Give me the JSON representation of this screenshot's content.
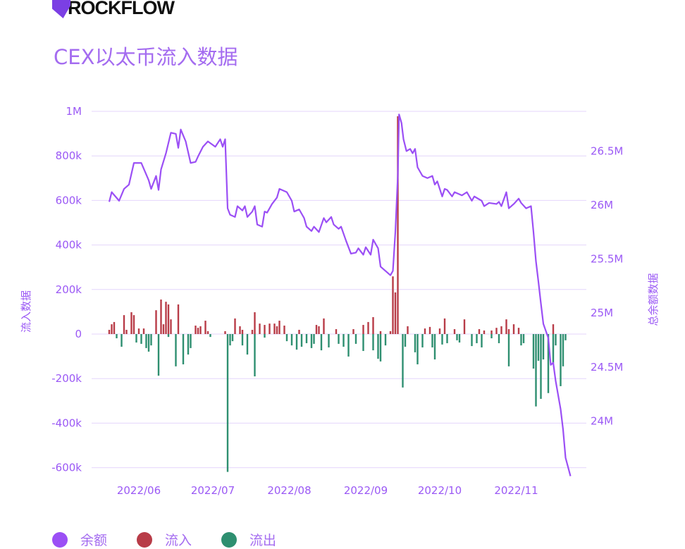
{
  "brand": "ROCKFLOW",
  "title": "CEX以太币流入数据",
  "colors": {
    "balance": "#9b4ff5",
    "inflow": "#b83c48",
    "outflow": "#2e8f70",
    "grid": "#e4d6fb",
    "text": "#9b59f5"
  },
  "legend": [
    {
      "label": "余额",
      "color": "#9b4ff5"
    },
    {
      "label": "流入",
      "color": "#b83c48"
    },
    {
      "label": "流出",
      "color": "#2e8f70"
    }
  ],
  "chart_data": {
    "type": "bar+line",
    "title": "CEX以太币流入数据",
    "ylabel": "流入数据",
    "y2label": "总余额数据",
    "x_unit": "days since 2022-06-01",
    "x_ticks": [
      {
        "label": "2022/06",
        "x": 0
      },
      {
        "label": "2022/07",
        "x": 30
      },
      {
        "label": "2022/08",
        "x": 61
      },
      {
        "label": "2022/09",
        "x": 92
      },
      {
        "label": "2022/10",
        "x": 122
      },
      {
        "label": "2022/11",
        "x": 153
      }
    ],
    "y_ticks": [
      {
        "label": "1M",
        "v": 1000000
      },
      {
        "label": "800k",
        "v": 800000
      },
      {
        "label": "600k",
        "v": 600000
      },
      {
        "label": "400k",
        "v": 400000
      },
      {
        "label": "200k",
        "v": 200000
      },
      {
        "label": "0",
        "v": 0
      },
      {
        "label": "-200k",
        "v": -200000
      },
      {
        "label": "-400k",
        "v": -400000
      },
      {
        "label": "-600k",
        "v": -600000
      }
    ],
    "y2_ticks": [
      {
        "label": "26.5M",
        "v": 26.5
      },
      {
        "label": "26M",
        "v": 26.0
      },
      {
        "label": "25.5M",
        "v": 25.5
      },
      {
        "label": "25M",
        "v": 25.0
      },
      {
        "label": "24.5M",
        "v": 24.5
      },
      {
        "label": "24M",
        "v": 24.0
      }
    ],
    "ylim": [
      -600000,
      1000000
    ],
    "y2lim_millions": [
      23.57,
      26.86
    ],
    "series": [
      {
        "name": "余额",
        "type": "line",
        "axis": "right",
        "unit": "M",
        "points": [
          [
            -12,
            26.03
          ],
          [
            -11,
            26.12
          ],
          [
            -8,
            26.04
          ],
          [
            -6,
            26.15
          ],
          [
            -4,
            26.19
          ],
          [
            -2,
            26.39
          ],
          [
            1,
            26.39
          ],
          [
            4,
            26.23
          ],
          [
            5,
            26.15
          ],
          [
            7,
            26.27
          ],
          [
            8,
            26.14
          ],
          [
            9,
            26.33
          ],
          [
            11,
            26.48
          ],
          [
            13,
            26.67
          ],
          [
            15,
            26.66
          ],
          [
            16,
            26.53
          ],
          [
            17,
            26.7
          ],
          [
            19,
            26.59
          ],
          [
            21,
            26.39
          ],
          [
            23,
            26.4
          ],
          [
            24,
            26.45
          ],
          [
            26,
            26.54
          ],
          [
            28,
            26.59
          ],
          [
            31,
            26.54
          ],
          [
            33,
            26.61
          ],
          [
            34,
            26.54
          ],
          [
            35,
            26.61
          ],
          [
            36,
            25.97
          ],
          [
            37,
            25.91
          ],
          [
            39,
            25.89
          ],
          [
            40,
            25.99
          ],
          [
            42,
            25.95
          ],
          [
            43,
            25.99
          ],
          [
            44,
            25.89
          ],
          [
            46,
            25.94
          ],
          [
            47,
            25.99
          ],
          [
            48,
            25.82
          ],
          [
            50,
            25.8
          ],
          [
            51,
            25.94
          ],
          [
            52,
            25.93
          ],
          [
            54,
            26.01
          ],
          [
            56,
            26.07
          ],
          [
            57,
            26.15
          ],
          [
            60,
            26.12
          ],
          [
            62,
            26.04
          ],
          [
            63,
            25.94
          ],
          [
            65,
            25.96
          ],
          [
            67,
            25.88
          ],
          [
            68,
            25.8
          ],
          [
            70,
            25.76
          ],
          [
            71,
            25.8
          ],
          [
            73,
            25.75
          ],
          [
            75,
            25.88
          ],
          [
            76,
            25.84
          ],
          [
            78,
            25.89
          ],
          [
            79,
            25.82
          ],
          [
            81,
            25.78
          ],
          [
            82,
            25.8
          ],
          [
            84,
            25.67
          ],
          [
            86,
            25.55
          ],
          [
            88,
            25.56
          ],
          [
            89,
            25.6
          ],
          [
            91,
            25.54
          ],
          [
            92,
            25.61
          ],
          [
            94,
            25.54
          ],
          [
            95,
            25.68
          ],
          [
            97,
            25.6
          ],
          [
            98,
            25.43
          ],
          [
            100,
            25.39
          ],
          [
            102,
            25.35
          ],
          [
            103,
            25.39
          ],
          [
            104,
            25.75
          ],
          [
            105,
            26.27
          ],
          [
            105.5,
            26.84
          ],
          [
            106.5,
            26.76
          ],
          [
            107.3,
            26.61
          ],
          [
            108.5,
            26.5
          ],
          [
            110,
            26.52
          ],
          [
            111,
            26.48
          ],
          [
            112,
            26.52
          ],
          [
            113,
            26.35
          ],
          [
            115,
            26.27
          ],
          [
            117,
            26.25
          ],
          [
            119,
            26.27
          ],
          [
            120,
            26.19
          ],
          [
            121,
            26.22
          ],
          [
            123,
            26.08
          ],
          [
            124,
            26.15
          ],
          [
            125,
            26.14
          ],
          [
            127,
            26.08
          ],
          [
            128,
            26.12
          ],
          [
            131,
            26.09
          ],
          [
            133,
            26.12
          ],
          [
            135,
            26.04
          ],
          [
            136,
            26.08
          ],
          [
            139,
            26.04
          ],
          [
            140,
            25.99
          ],
          [
            142,
            26.02
          ],
          [
            145,
            26.01
          ],
          [
            146,
            26.03
          ],
          [
            147,
            25.99
          ],
          [
            149,
            26.12
          ],
          [
            150,
            25.97
          ],
          [
            152,
            26.01
          ],
          [
            154,
            26.06
          ],
          [
            155,
            26.02
          ],
          [
            157,
            25.97
          ],
          [
            159,
            25.99
          ],
          [
            160,
            25.75
          ],
          [
            161,
            25.48
          ],
          [
            162,
            25.29
          ],
          [
            163,
            25.09
          ],
          [
            164,
            24.9
          ],
          [
            166,
            24.77
          ],
          [
            167,
            24.52
          ],
          [
            168,
            24.54
          ],
          [
            169,
            24.37
          ],
          [
            171,
            24.11
          ],
          [
            172,
            23.92
          ],
          [
            173,
            23.66
          ],
          [
            175,
            23.49
          ]
        ]
      },
      {
        "name": "流入",
        "type": "bar",
        "axis": "left",
        "points": [
          [
            -12,
            19000
          ],
          [
            -11,
            44000
          ],
          [
            -10,
            54000
          ],
          [
            -6,
            85000
          ],
          [
            -5,
            19000
          ],
          [
            -3,
            98000
          ],
          [
            -2,
            85000
          ],
          [
            0,
            25000
          ],
          [
            2,
            25000
          ],
          [
            7,
            107000
          ],
          [
            9,
            155000
          ],
          [
            10,
            44000
          ],
          [
            11,
            145000
          ],
          [
            12,
            133000
          ],
          [
            13,
            66000
          ],
          [
            16,
            133000
          ],
          [
            23,
            38000
          ],
          [
            24,
            28000
          ],
          [
            25,
            35000
          ],
          [
            27,
            60000
          ],
          [
            28,
            13000
          ],
          [
            35,
            13000
          ],
          [
            39,
            70000
          ],
          [
            41,
            35000
          ],
          [
            42,
            19000
          ],
          [
            46,
            19000
          ],
          [
            47,
            98000
          ],
          [
            49,
            47000
          ],
          [
            51,
            41000
          ],
          [
            53,
            47000
          ],
          [
            55,
            47000
          ],
          [
            56,
            35000
          ],
          [
            57,
            60000
          ],
          [
            59,
            38000
          ],
          [
            65,
            19000
          ],
          [
            72,
            41000
          ],
          [
            73,
            35000
          ],
          [
            75,
            70000
          ],
          [
            80,
            22000
          ],
          [
            87,
            22000
          ],
          [
            91,
            41000
          ],
          [
            93,
            54000
          ],
          [
            95,
            76000
          ],
          [
            98,
            13000
          ],
          [
            102,
            13000
          ],
          [
            103,
            259000
          ],
          [
            104,
            187000
          ],
          [
            105,
            978000
          ],
          [
            109,
            35000
          ],
          [
            116,
            25000
          ],
          [
            118,
            32000
          ],
          [
            122,
            25000
          ],
          [
            124,
            70000
          ],
          [
            128,
            22000
          ],
          [
            132,
            66000
          ],
          [
            138,
            22000
          ],
          [
            140,
            16000
          ],
          [
            143,
            16000
          ],
          [
            145,
            28000
          ],
          [
            147,
            35000
          ],
          [
            149,
            66000
          ],
          [
            150,
            22000
          ],
          [
            152,
            44000
          ],
          [
            154,
            28000
          ],
          [
            168,
            44000
          ]
        ]
      },
      {
        "name": "流出",
        "type": "bar",
        "axis": "left",
        "points": [
          [
            -9,
            -19000
          ],
          [
            -7,
            -57000
          ],
          [
            -1,
            -38000
          ],
          [
            1,
            -44000
          ],
          [
            3,
            -63000
          ],
          [
            4,
            -79000
          ],
          [
            5,
            -51000
          ],
          [
            8,
            -187000
          ],
          [
            12,
            -13000
          ],
          [
            15,
            -145000
          ],
          [
            18,
            -136000
          ],
          [
            20,
            -92000
          ],
          [
            21,
            -63000
          ],
          [
            29,
            -13000
          ],
          [
            36,
            -619000
          ],
          [
            37,
            -51000
          ],
          [
            38,
            -32000
          ],
          [
            42,
            -51000
          ],
          [
            44,
            -92000
          ],
          [
            47,
            -190000
          ],
          [
            51,
            -16000
          ],
          [
            60,
            -32000
          ],
          [
            62,
            -51000
          ],
          [
            64,
            -70000
          ],
          [
            66,
            -57000
          ],
          [
            68,
            -41000
          ],
          [
            70,
            -63000
          ],
          [
            71,
            -44000
          ],
          [
            74,
            -73000
          ],
          [
            77,
            -60000
          ],
          [
            81,
            -44000
          ],
          [
            83,
            -57000
          ],
          [
            85,
            -101000
          ],
          [
            88,
            -44000
          ],
          [
            91,
            -76000
          ],
          [
            95,
            -73000
          ],
          [
            97,
            -111000
          ],
          [
            98,
            -123000
          ],
          [
            100,
            -51000
          ],
          [
            107,
            -240000
          ],
          [
            108,
            -57000
          ],
          [
            112,
            -82000
          ],
          [
            113,
            -136000
          ],
          [
            115,
            -60000
          ],
          [
            119,
            -60000
          ],
          [
            120,
            -114000
          ],
          [
            123,
            -47000
          ],
          [
            125,
            -41000
          ],
          [
            129,
            -28000
          ],
          [
            130,
            -38000
          ],
          [
            135,
            -54000
          ],
          [
            137,
            -41000
          ],
          [
            139,
            -60000
          ],
          [
            143,
            -19000
          ],
          [
            146,
            -41000
          ],
          [
            150,
            -145000
          ],
          [
            155,
            -51000
          ],
          [
            156,
            -41000
          ],
          [
            160,
            -155000
          ],
          [
            161,
            -325000
          ],
          [
            162,
            -120000
          ],
          [
            163,
            -291000
          ],
          [
            164,
            -114000
          ],
          [
            166,
            -265000
          ],
          [
            168,
            -130000
          ],
          [
            169,
            -51000
          ],
          [
            171,
            -234000
          ],
          [
            172,
            -145000
          ],
          [
            173,
            -28000
          ]
        ]
      }
    ],
    "grid": true,
    "legend_position": "bottom-left"
  }
}
